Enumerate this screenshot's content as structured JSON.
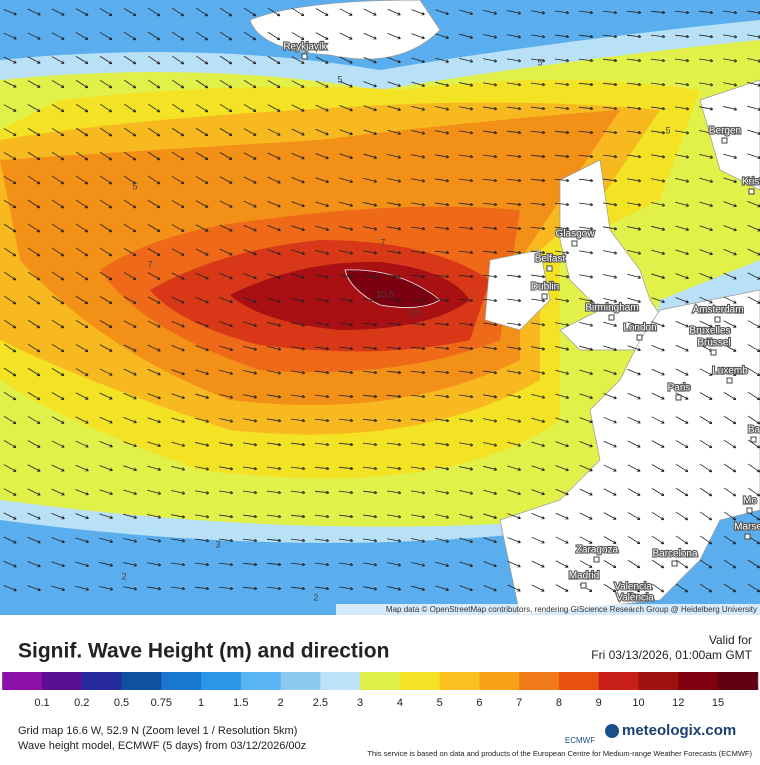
{
  "map": {
    "cities": [
      "Reykjavík",
      "Bergen",
      "Krist",
      "Glasgow",
      "Belfast",
      "Dublin",
      "Birmingham",
      "London",
      "Amsterdam",
      "Bruxelles",
      "Brussel",
      "Luxemb",
      "Paris",
      "Zaragoza",
      "Barcelona",
      "Madrid",
      "Valencia",
      "València",
      "Marse",
      "Mo",
      "Ba"
    ],
    "contour_labels": [
      "10.5",
      "10",
      "7",
      "7",
      "5",
      "5",
      "5",
      "5",
      "3",
      "2",
      "2"
    ],
    "attribution": "Map data © OpenStreetMap contributors, rendering GIScience Research Group @ Heidelberg University"
  },
  "header": {
    "title": "Signif. Wave Height (m) and direction",
    "valid_label": "Valid for",
    "valid_time": "Fri 03/13/2026, 01:00am GMT"
  },
  "legend": {
    "low_color": "#c020c0",
    "high_color": "#b0b0b0",
    "labels": [
      "0.1",
      "0.2",
      "0.5",
      "0.75",
      "1",
      "1.5",
      "2",
      "2.5",
      "3",
      "4",
      "5",
      "6",
      "7",
      "8",
      "9",
      "10",
      "12",
      "15"
    ],
    "colors": [
      "#8a10a8",
      "#5a1090",
      "#282aa0",
      "#1050a0",
      "#1878d0",
      "#2c96e8",
      "#58b4f2",
      "#8ccaf2",
      "#bce2f8",
      "#e0f048",
      "#f4e224",
      "#f8c020",
      "#f8a018",
      "#f07a18",
      "#e85010",
      "#c82018",
      "#a01010",
      "#800010",
      "#600010"
    ]
  },
  "footer": {
    "grid": "Grid map 16.6 W, 52.9 N (Zoom level 1 / Resolution 5km)",
    "model": "Wave height model, ECMWF (5 days) from 03/12/2026/00z",
    "ecmwf": "ECMWF",
    "brand": "meteologix.com",
    "disclaimer": "This service is based on data and products of the European Centre for Medium-range Weather Forecasts (ECMWF)"
  }
}
